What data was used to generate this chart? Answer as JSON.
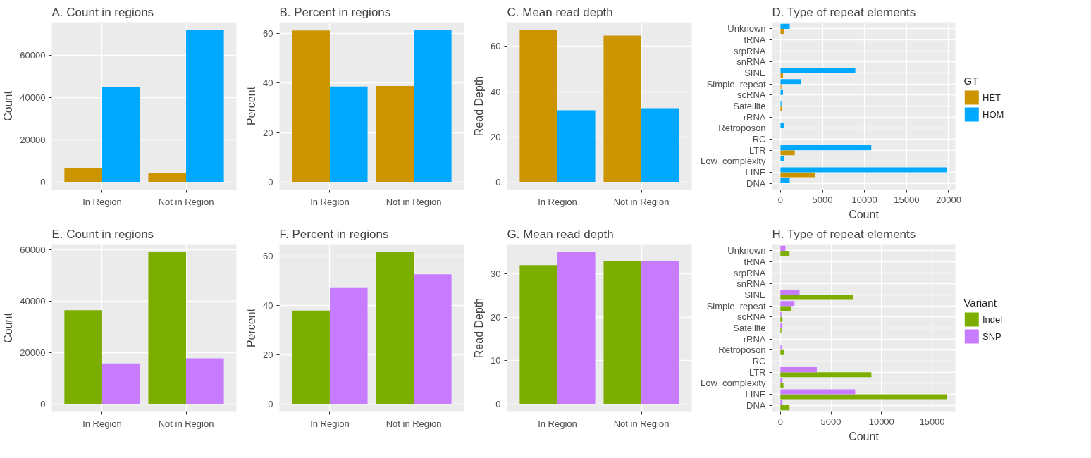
{
  "chart_data": [
    {
      "type": "bar",
      "title": "A. Count in regions",
      "ylabel": "Count",
      "categories": [
        "In Region",
        "Not in Region"
      ],
      "ylim": [
        -3600,
        75800
      ],
      "yticks": [
        0,
        20000,
        40000,
        60000
      ],
      "grid": true,
      "series": [
        {
          "color": "#cc9400",
          "values": [
            6800,
            4300
          ]
        },
        {
          "color": "#00a8ff",
          "values": [
            45300,
            72300
          ]
        }
      ]
    },
    {
      "type": "bar",
      "title": "B. Percent in regions",
      "ylabel": "Percent",
      "categories": [
        "In Region",
        "Not in Region"
      ],
      "ylim": [
        -3,
        64.5
      ],
      "yticks": [
        0,
        20,
        40,
        60
      ],
      "grid": true,
      "series": [
        {
          "color": "#cc9400",
          "values": [
            61.2,
            38.8
          ]
        },
        {
          "color": "#00a8ff",
          "values": [
            38.6,
            61.4
          ]
        }
      ]
    },
    {
      "type": "bar",
      "title": "C. Mean read depth",
      "ylabel": "Read Depth",
      "categories": [
        "In Region",
        "Not in Region"
      ],
      "ylim": [
        -3.4,
        70.7
      ],
      "yticks": [
        0,
        20,
        40,
        60
      ],
      "grid": true,
      "series": [
        {
          "color": "#cc9400",
          "values": [
            67.3,
            64.8
          ]
        },
        {
          "color": "#00a8ff",
          "values": [
            31.8,
            32.7
          ]
        }
      ]
    },
    {
      "type": "bar",
      "orientation": "horizontal",
      "title": "D. Type of repeat elements",
      "xlabel": "Count",
      "legend_title": "GT",
      "legend": "right",
      "categories": [
        "Unknown",
        "tRNA",
        "srpRNA",
        "snRNA",
        "SINE",
        "Simple_repeat",
        "scRNA",
        "Satellite",
        "rRNA",
        "Retroposon",
        "RC",
        "LTR",
        "Low_complexity",
        "LINE",
        "DNA"
      ],
      "xlim": [
        -1000,
        20800
      ],
      "xticks": [
        0,
        5000,
        10000,
        15000,
        20000
      ],
      "grid": true,
      "series": [
        {
          "name": "HET",
          "color": "#cc9400",
          "values": [
            400,
            0,
            0,
            0,
            300,
            100,
            0,
            200,
            0,
            0,
            0,
            1700,
            0,
            4100,
            0
          ]
        },
        {
          "name": "HOM",
          "color": "#00a8ff",
          "values": [
            1100,
            0,
            0,
            0,
            8900,
            2400,
            300,
            100,
            0,
            400,
            0,
            10800,
            400,
            19800,
            1100
          ]
        }
      ]
    },
    {
      "type": "bar",
      "title": "E. Count in regions",
      "ylabel": "Count",
      "categories": [
        "In Region",
        "Not in Region"
      ],
      "ylim": [
        -3000,
        62200
      ],
      "yticks": [
        0,
        20000,
        40000,
        60000
      ],
      "grid": true,
      "series": [
        {
          "color": "#7cae00",
          "values": [
            36500,
            59200
          ]
        },
        {
          "color": "#c77cff",
          "values": [
            15800,
            17800
          ]
        }
      ]
    },
    {
      "type": "bar",
      "title": "F. Percent in regions",
      "ylabel": "Percent",
      "categories": [
        "In Region",
        "Not in Region"
      ],
      "ylim": [
        -3.1,
        65
      ],
      "yticks": [
        0,
        20,
        40,
        60
      ],
      "grid": true,
      "series": [
        {
          "color": "#7cae00",
          "values": [
            38,
            62
          ]
        },
        {
          "color": "#c77cff",
          "values": [
            47.2,
            52.8
          ]
        }
      ]
    },
    {
      "type": "bar",
      "title": "G. Mean read depth",
      "ylabel": "Read Depth",
      "categories": [
        "In Region",
        "Not in Region"
      ],
      "ylim": [
        -1.75,
        36.8
      ],
      "yticks": [
        0,
        10,
        20,
        30
      ],
      "grid": true,
      "series": [
        {
          "color": "#7cae00",
          "values": [
            32,
            33
          ]
        },
        {
          "color": "#c77cff",
          "values": [
            35,
            33
          ]
        }
      ]
    },
    {
      "type": "bar",
      "orientation": "horizontal",
      "title": "H. Type of repeat elements",
      "xlabel": "Count",
      "legend_title": "Variant",
      "legend": "right",
      "categories": [
        "Unknown",
        "tRNA",
        "srpRNA",
        "snRNA",
        "SINE",
        "Simple_repeat",
        "scRNA",
        "Satellite",
        "rRNA",
        "Retroposon",
        "RC",
        "LTR",
        "Low_complexity",
        "LINE",
        "DNA"
      ],
      "xlim": [
        -820,
        17300
      ],
      "xticks": [
        0,
        5000,
        10000,
        15000
      ],
      "grid": true,
      "series": [
        {
          "name": "Indel",
          "color": "#7cae00",
          "values": [
            900,
            0,
            0,
            0,
            7200,
            1100,
            200,
            100,
            0,
            400,
            0,
            9000,
            300,
            16500,
            900
          ]
        },
        {
          "name": "SNP",
          "color": "#c77cff",
          "values": [
            500,
            0,
            0,
            0,
            1900,
            1400,
            100,
            200,
            0,
            100,
            0,
            3600,
            200,
            7400,
            200
          ]
        }
      ]
    }
  ]
}
